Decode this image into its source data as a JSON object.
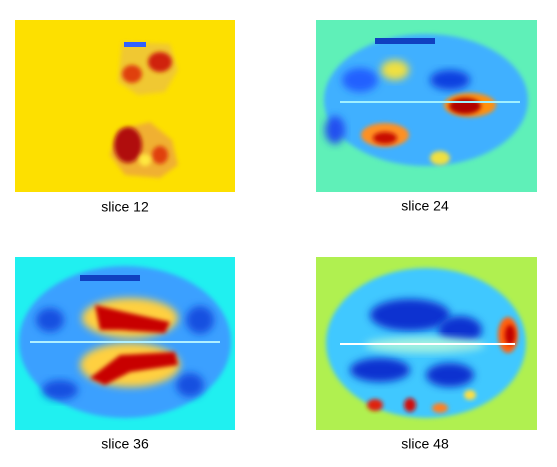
{
  "panels": [
    {
      "label": "slice 12"
    },
    {
      "label": "slice 24"
    },
    {
      "label": "slice 36"
    },
    {
      "label": "slice 48"
    }
  ]
}
